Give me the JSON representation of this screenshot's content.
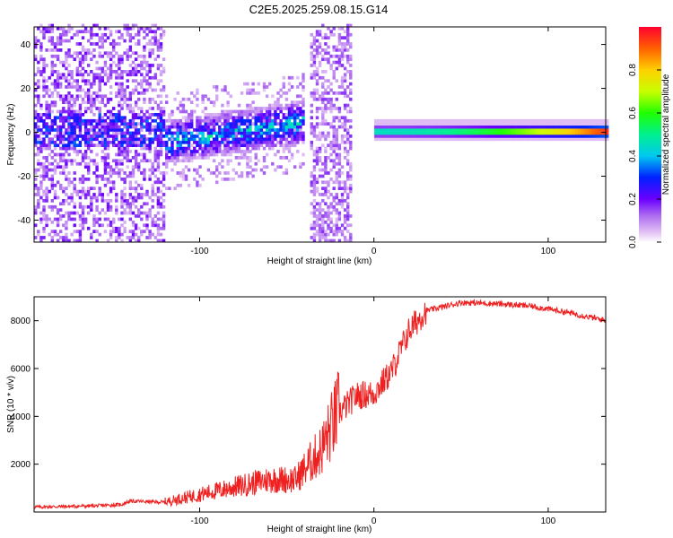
{
  "title": "C2E5.2025.259.08.15.G14",
  "chart_data": [
    {
      "type": "heatmap",
      "name": "spectrogram",
      "xlabel": "Height of straight line (km)",
      "ylabel": "Frequency (Hz)",
      "xlim": [
        -195,
        133
      ],
      "ylim": [
        -50,
        48
      ],
      "xticks": [
        -100,
        0,
        100
      ],
      "yticks": [
        -40,
        -20,
        0,
        20,
        40
      ],
      "colorbar": {
        "label": "Normalized spectral amplitude",
        "range": [
          0,
          1
        ],
        "ticks": [
          0.0,
          0.2,
          0.4,
          0.6,
          0.8
        ]
      },
      "features": [
        {
          "x_from": -195,
          "x_to": -120,
          "description": "scattered noise",
          "freq_center": 0,
          "amplitude": 0.15
        },
        {
          "x_from": -120,
          "x_to": -40,
          "description": "rising band",
          "freq_start": -5,
          "freq_end": 4,
          "amplitude": 0.45
        },
        {
          "x_from": -38,
          "x_to": -13,
          "description": "vertical noise column",
          "amplitude": 0.12
        },
        {
          "x_from": 0,
          "x_to": 133,
          "description": "steady line",
          "freq_center": 0,
          "amplitude_start": 0.45,
          "amplitude_end": 0.95
        }
      ]
    },
    {
      "type": "line",
      "name": "snr",
      "xlabel": "Height of straight line (km)",
      "ylabel": "SNR (10 * v/v)",
      "xlim": [
        -195,
        133
      ],
      "ylim": [
        0,
        9000
      ],
      "xticks": [
        -100,
        0,
        100
      ],
      "yticks": [
        2000,
        4000,
        6000,
        8000
      ],
      "color": "#ef2020",
      "series": [
        {
          "name": "SNR",
          "x": [
            -195,
            -160,
            -145,
            -140,
            -120,
            -100,
            -80,
            -60,
            -45,
            -30,
            -20,
            -10,
            0,
            10,
            20,
            30,
            50,
            70,
            90,
            110,
            133
          ],
          "y": [
            200,
            250,
            300,
            450,
            400,
            700,
            1000,
            1300,
            1300,
            2500,
            4100,
            4800,
            4900,
            5800,
            7500,
            8400,
            8750,
            8700,
            8600,
            8350,
            8000
          ]
        }
      ]
    }
  ]
}
